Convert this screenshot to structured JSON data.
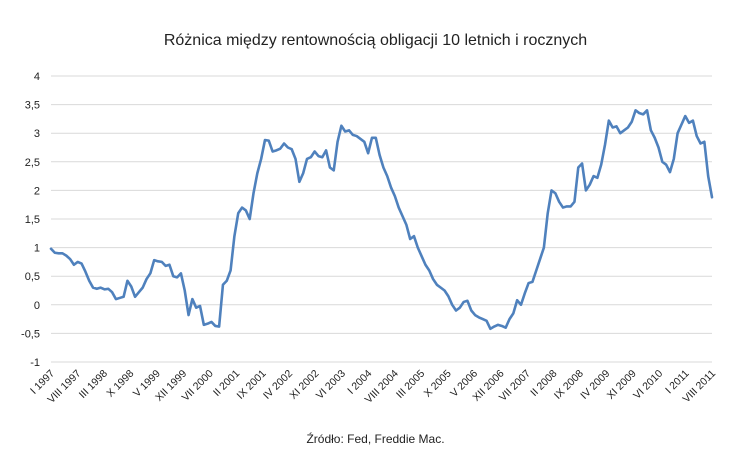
{
  "chart_data": {
    "type": "line",
    "title": "Różnica między rentownością obligacji 10 letnich i rocznych",
    "source": "Źródło: Fed, Freddie Mac.",
    "ylim": [
      -1,
      4
    ],
    "yticks": [
      -1,
      -0.5,
      0,
      0.5,
      1,
      1.5,
      2,
      2.5,
      3,
      3.5,
      4
    ],
    "ytick_labels": [
      "-1",
      "-0,5",
      "0",
      "0,5",
      "1",
      "1,5",
      "2",
      "2,5",
      "3",
      "3,5",
      "4"
    ],
    "grid": true,
    "legend": "none",
    "line_color": "#4F81BD",
    "xtick_labels": [
      "I 1997",
      "VIII 1997",
      "III 1998",
      "X 1998",
      "V 1999",
      "XII 1999",
      "VII 2000",
      "II 2001",
      "IX 2001",
      "IV 2002",
      "XI 2002",
      "VI 2003",
      "I 2004",
      "VIII 2004",
      "III 2005",
      "X 2005",
      "V 2006",
      "XII 2006",
      "VII 2007",
      "II 2008",
      "IX 2008",
      "IV 2009",
      "XI 2009",
      "VI 2010",
      "I 2011",
      "VIII 2011"
    ],
    "series": [
      {
        "values": [
          0.98,
          0.91,
          0.9,
          0.9,
          0.86,
          0.8,
          0.7,
          0.75,
          0.72,
          0.58,
          0.42,
          0.3,
          0.28,
          0.3,
          0.27,
          0.28,
          0.22,
          0.1,
          0.12,
          0.14,
          0.42,
          0.32,
          0.14,
          0.22,
          0.3,
          0.45,
          0.55,
          0.78,
          0.76,
          0.75,
          0.68,
          0.7,
          0.5,
          0.48,
          0.55,
          0.25,
          -0.18,
          0.1,
          -0.05,
          -0.02,
          -0.35,
          -0.33,
          -0.3,
          -0.37,
          -0.38,
          0.35,
          0.42,
          0.6,
          1.2,
          1.6,
          1.7,
          1.65,
          1.5,
          1.95,
          2.3,
          2.55,
          2.88,
          2.87,
          2.68,
          2.7,
          2.73,
          2.82,
          2.75,
          2.72,
          2.55,
          2.15,
          2.3,
          2.55,
          2.58,
          2.68,
          2.6,
          2.58,
          2.7,
          2.4,
          2.35,
          2.85,
          3.13,
          3.03,
          3.05,
          2.97,
          2.95,
          2.9,
          2.85,
          2.65,
          2.92,
          2.92,
          2.62,
          2.4,
          2.25,
          2.05,
          1.9,
          1.7,
          1.55,
          1.4,
          1.15,
          1.2,
          1.0,
          0.85,
          0.7,
          0.6,
          0.45,
          0.35,
          0.3,
          0.25,
          0.15,
          0.0,
          -0.1,
          -0.05,
          0.05,
          0.07,
          -0.1,
          -0.18,
          -0.22,
          -0.25,
          -0.28,
          -0.42,
          -0.38,
          -0.35,
          -0.37,
          -0.4,
          -0.25,
          -0.15,
          0.08,
          0.0,
          0.2,
          0.38,
          0.4,
          0.6,
          0.8,
          1.0,
          1.6,
          2.0,
          1.95,
          1.8,
          1.7,
          1.72,
          1.72,
          1.8,
          2.4,
          2.47,
          2.0,
          2.1,
          2.25,
          2.22,
          2.45,
          2.8,
          3.22,
          3.1,
          3.12,
          3.0,
          3.05,
          3.1,
          3.2,
          3.4,
          3.35,
          3.33,
          3.4,
          3.05,
          2.92,
          2.75,
          2.5,
          2.45,
          2.32,
          2.55,
          3.0,
          3.15,
          3.3,
          3.18,
          3.22,
          2.95,
          2.82,
          2.85,
          2.25,
          1.88
        ]
      }
    ]
  }
}
